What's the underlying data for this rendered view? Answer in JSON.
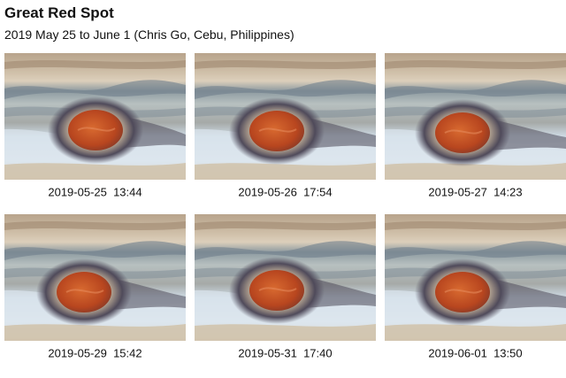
{
  "header": {
    "title": "Great Red Spot",
    "subtitle": "2019 May 25 to June 1 (Chris Go, Cebu, Philippines)"
  },
  "panels": [
    {
      "caption": "2019-05-25  13:44"
    },
    {
      "caption": "2019-05-26  17:54"
    },
    {
      "caption": "2019-05-27  14:23"
    },
    {
      "caption": "2019-05-29  15:42"
    },
    {
      "caption": "2019-05-31  17:40"
    },
    {
      "caption": "2019-06-01  13:50"
    }
  ]
}
